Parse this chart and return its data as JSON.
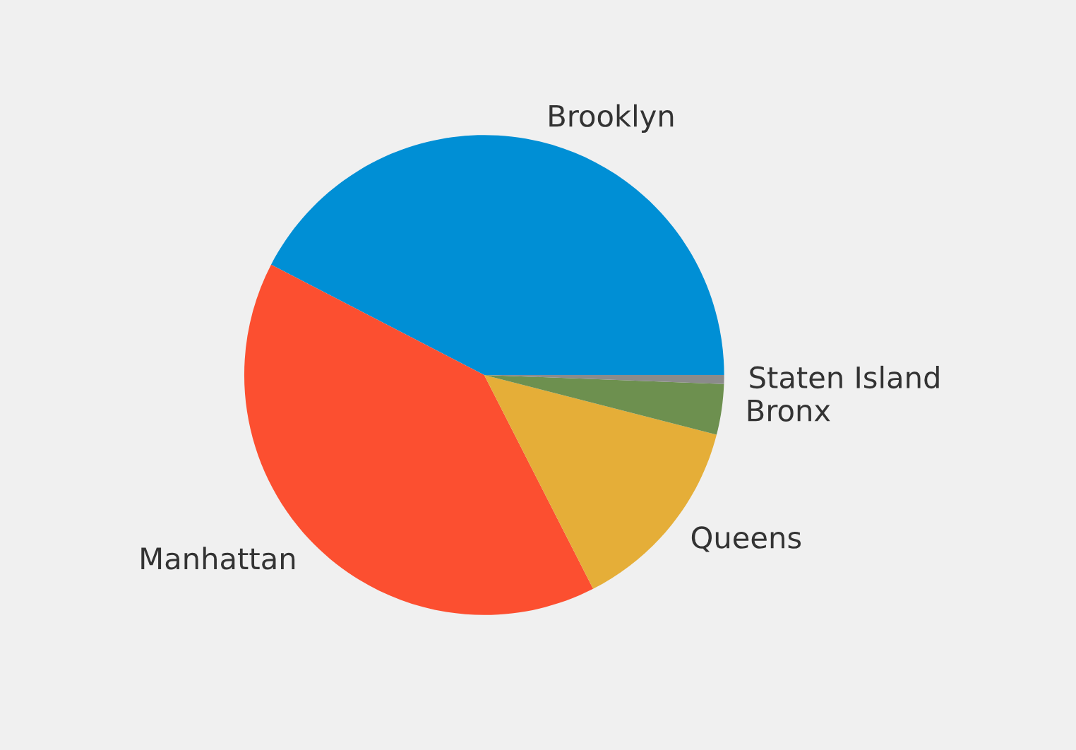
{
  "chart_data": {
    "type": "pie",
    "categories": [
      "Brooklyn",
      "Manhattan",
      "Queens",
      "Bronx",
      "Staten Island"
    ],
    "values": [
      42.4,
      40.1,
      13.5,
      3.4,
      0.6
    ],
    "colors": [
      "#008fd5",
      "#fc4f30",
      "#e5ae38",
      "#6d904f",
      "#8b8b8b"
    ]
  }
}
